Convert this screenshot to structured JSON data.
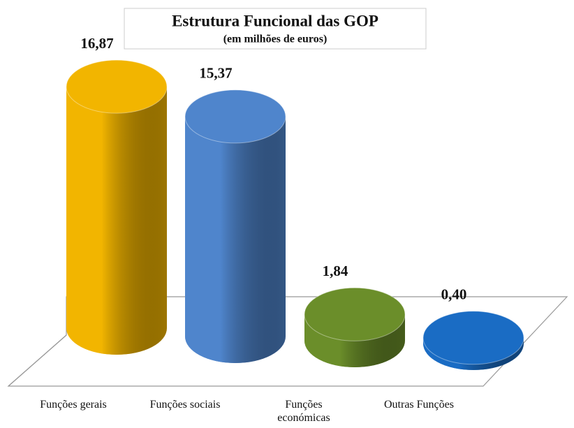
{
  "chart_data": {
    "type": "bar3d",
    "title": "Estrutura Funcional das GOP",
    "subtitle": "(em milhões de euros)",
    "categories": [
      "Funções gerais",
      "Funções sociais",
      "Funções económicas",
      "Outras Funções"
    ],
    "values": [
      16.87,
      15.37,
      1.84,
      0.4
    ],
    "value_labels": [
      "16,87",
      "15,37",
      "1,84",
      "0,40"
    ],
    "colors": [
      "#f2b500",
      "#4f85cc",
      "#6b8e2a",
      "#1a6cc4"
    ]
  }
}
